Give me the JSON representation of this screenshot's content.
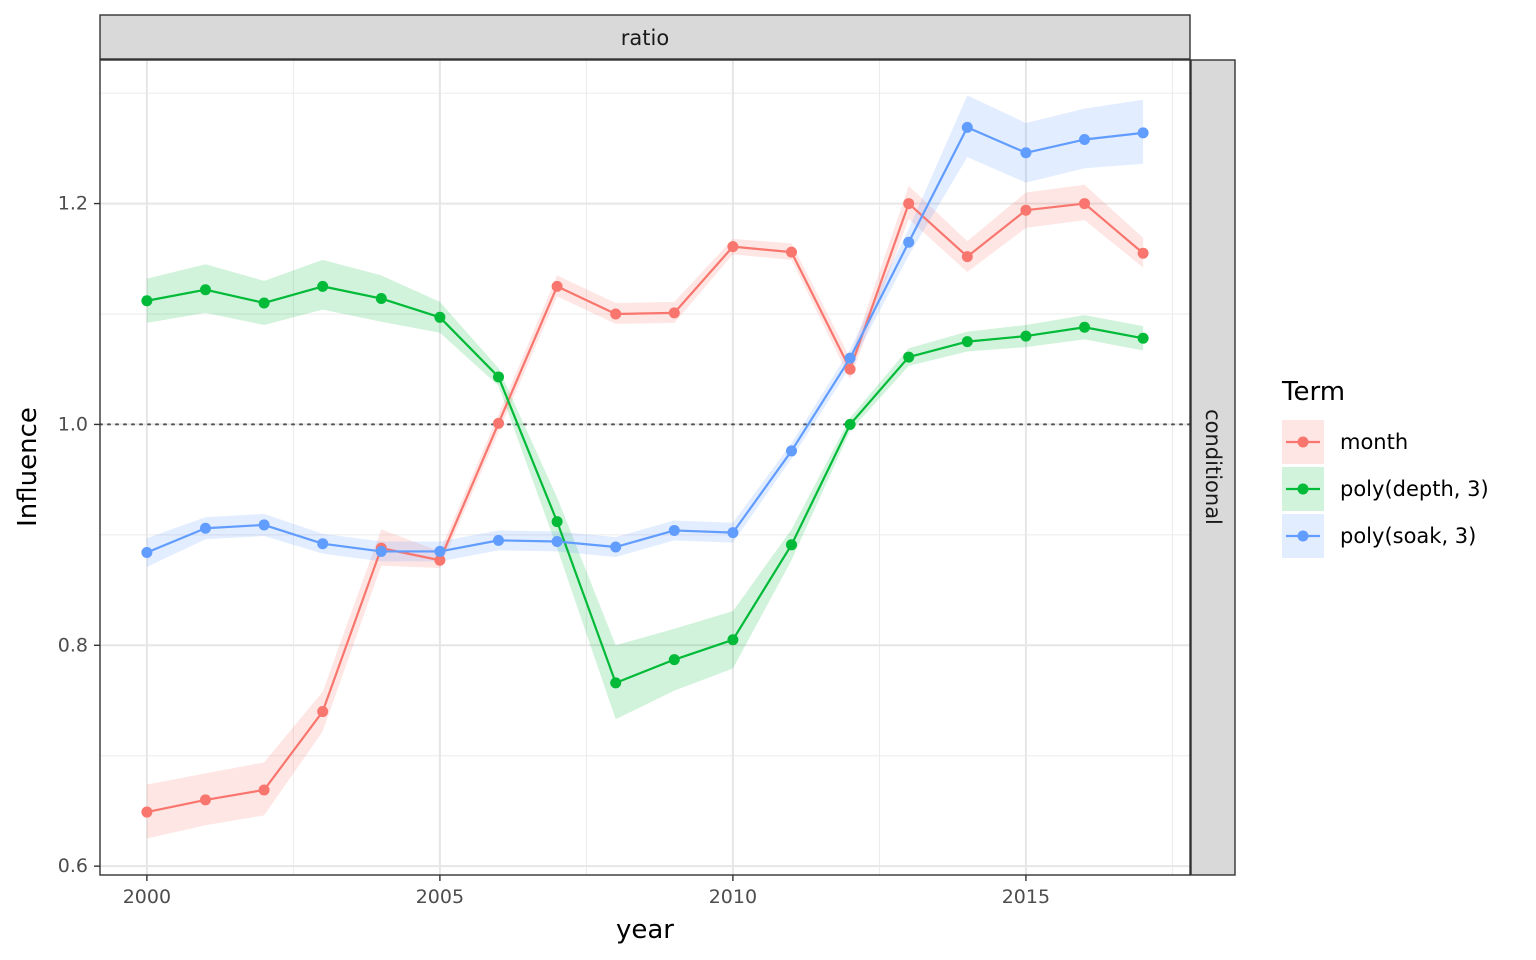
{
  "chart_data": {
    "type": "line",
    "title": "",
    "facet_col": "ratio",
    "facet_row": "conditional",
    "xlabel": "year",
    "ylabel": "Influence",
    "xlim": [
      1999.2,
      2017.8
    ],
    "ylim": [
      0.592,
      1.33
    ],
    "x_ticks": [
      2000,
      2005,
      2010,
      2015
    ],
    "y_ticks": [
      0.6,
      0.8,
      1.0,
      1.2
    ],
    "y_tick_labels": [
      "0.6",
      "0.8",
      "1.0",
      "1.2"
    ],
    "reference_line": 1.0,
    "grid": true,
    "legend": {
      "title": "Term",
      "position": "right"
    },
    "x": [
      2000,
      2001,
      2002,
      2003,
      2004,
      2005,
      2006,
      2007,
      2008,
      2009,
      2010,
      2011,
      2012,
      2013,
      2014,
      2015,
      2016,
      2017
    ],
    "series": [
      {
        "name": "month",
        "color": "#F8766D",
        "values": [
          0.649,
          0.66,
          0.669,
          0.74,
          0.888,
          0.877,
          1.001,
          1.125,
          1.1,
          1.101,
          1.161,
          1.156,
          1.05,
          1.2,
          1.152,
          1.194,
          1.2,
          1.155
        ],
        "lower": [
          0.625,
          0.637,
          0.646,
          0.722,
          0.872,
          0.87,
          0.993,
          1.116,
          1.091,
          1.092,
          1.154,
          1.149,
          1.041,
          1.186,
          1.138,
          1.178,
          1.185,
          1.142
        ],
        "upper": [
          0.674,
          0.684,
          0.694,
          0.758,
          0.905,
          0.885,
          1.009,
          1.135,
          1.11,
          1.111,
          1.168,
          1.164,
          1.06,
          1.216,
          1.166,
          1.21,
          1.217,
          1.169
        ]
      },
      {
        "name": "poly(depth, 3)",
        "color": "#00BA38",
        "values": [
          1.112,
          1.122,
          1.11,
          1.125,
          1.114,
          1.097,
          1.043,
          0.912,
          0.766,
          0.787,
          0.805,
          0.891,
          1.0,
          1.061,
          1.075,
          1.08,
          1.088,
          1.078
        ],
        "lower": [
          1.092,
          1.101,
          1.09,
          1.104,
          1.093,
          1.083,
          1.035,
          0.888,
          0.733,
          0.759,
          0.779,
          0.877,
          0.994,
          1.053,
          1.066,
          1.07,
          1.077,
          1.067
        ],
        "upper": [
          1.132,
          1.145,
          1.13,
          1.149,
          1.135,
          1.111,
          1.051,
          0.934,
          0.8,
          0.815,
          0.831,
          0.905,
          1.006,
          1.069,
          1.084,
          1.09,
          1.099,
          1.089
        ]
      },
      {
        "name": "poly(soak, 3)",
        "color": "#619CFF",
        "values": [
          0.884,
          0.906,
          0.909,
          0.892,
          0.885,
          0.885,
          0.895,
          0.894,
          0.889,
          0.904,
          0.902,
          0.976,
          1.06,
          1.165,
          1.269,
          1.246,
          1.258,
          1.264
        ],
        "lower": [
          0.871,
          0.896,
          0.899,
          0.883,
          0.876,
          0.876,
          0.886,
          0.885,
          0.88,
          0.895,
          0.893,
          0.969,
          1.052,
          1.153,
          1.242,
          1.219,
          1.232,
          1.236
        ],
        "upper": [
          0.897,
          0.916,
          0.919,
          0.901,
          0.894,
          0.894,
          0.904,
          0.903,
          0.898,
          0.913,
          0.911,
          0.983,
          1.068,
          1.177,
          1.298,
          1.273,
          1.286,
          1.294
        ]
      }
    ]
  }
}
